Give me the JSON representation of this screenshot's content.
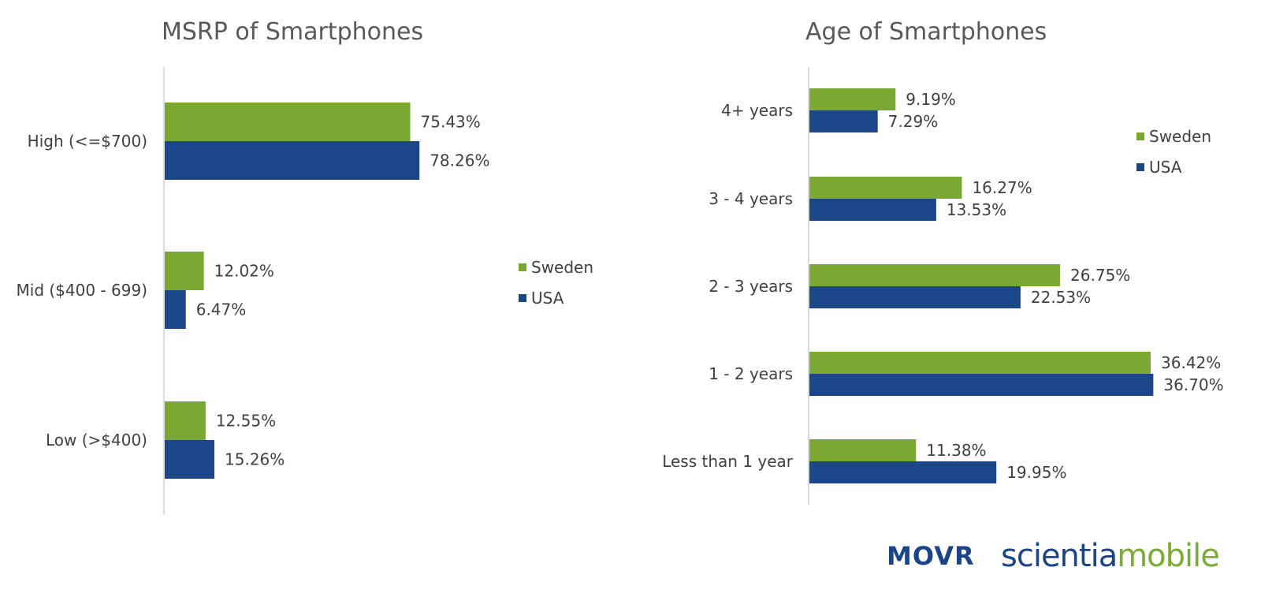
{
  "colors": {
    "sweden": "#7aa832",
    "usa": "#1b4788",
    "axis": "#d9d9d9"
  },
  "brand": {
    "movr": "MOVR",
    "scientia_part_a": "scientia",
    "scientia_part_b": "mobile"
  },
  "chart_data": [
    {
      "type": "bar",
      "orientation": "horizontal",
      "title": "MSRP of Smartphones",
      "categories": [
        "High (<=$700)",
        "Mid ($400 - 699)",
        "Low (>$400)"
      ],
      "series": [
        {
          "name": "Sweden",
          "values": [
            75.43,
            12.02,
            12.55
          ],
          "labels": [
            "75.43%",
            "12.02%",
            "12.55%"
          ]
        },
        {
          "name": "USA",
          "values": [
            78.26,
            6.47,
            15.26
          ],
          "labels": [
            "78.26%",
            "6.47%",
            "15.26%"
          ]
        }
      ],
      "xlim": [
        0,
        100
      ],
      "grid": false,
      "legend": "right"
    },
    {
      "type": "bar",
      "orientation": "horizontal",
      "title": "Age of Smartphones",
      "categories": [
        "4+ years",
        "3 - 4 years",
        "2 - 3 years",
        "1 - 2 years",
        "Less than 1 year"
      ],
      "series": [
        {
          "name": "Sweden",
          "values": [
            9.19,
            16.27,
            26.75,
            36.42,
            11.38
          ],
          "labels": [
            "9.19%",
            "16.27%",
            "26.75%",
            "36.42%",
            "11.38%"
          ]
        },
        {
          "name": "USA",
          "values": [
            7.29,
            13.53,
            22.53,
            36.7,
            19.95
          ],
          "labels": [
            "7.29%",
            "13.53%",
            "22.53%",
            "36.70%",
            "19.95%"
          ]
        }
      ],
      "xlim": [
        0,
        40
      ],
      "grid": false,
      "legend": "top-right"
    }
  ]
}
